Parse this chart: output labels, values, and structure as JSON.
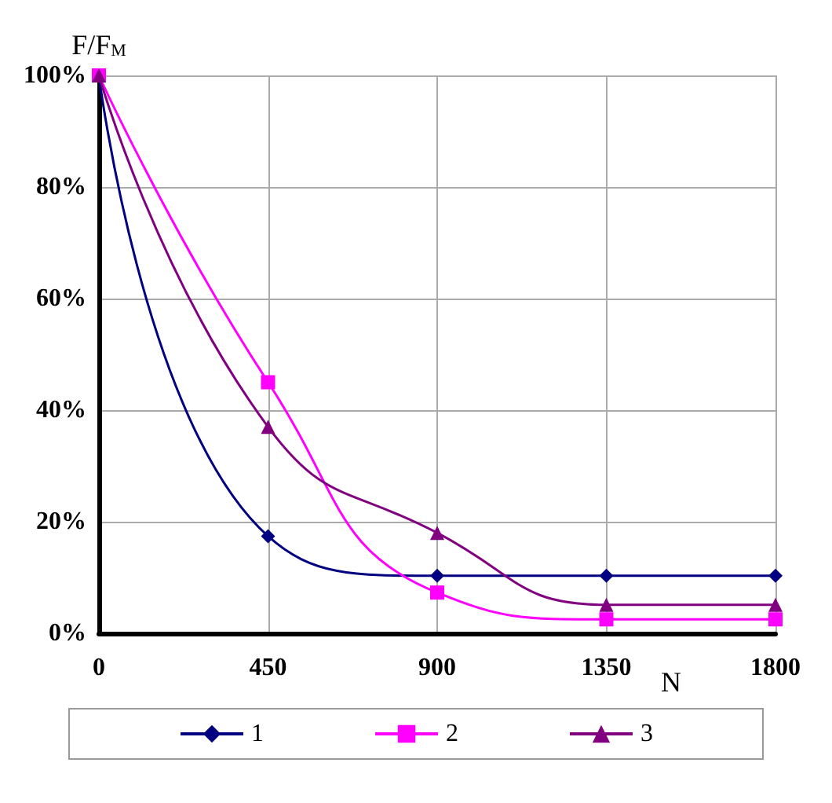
{
  "chart_data": {
    "type": "line",
    "ylabel": "F/F$_{M}$",
    "xlabel": "N",
    "x": [
      0,
      450,
      900,
      1350,
      1800
    ],
    "series": [
      {
        "name": "1",
        "color": "#000080",
        "marker": "diamond",
        "values": [
          100,
          17.4,
          10.3,
          10.3,
          10.3
        ]
      },
      {
        "name": "2",
        "color": "#ff00ff",
        "marker": "square",
        "values": [
          100,
          45,
          7.3,
          2.5,
          2.5
        ]
      },
      {
        "name": "3",
        "color": "#800080",
        "marker": "triangle",
        "values": [
          100,
          37,
          18,
          5.1,
          5.1
        ]
      }
    ],
    "xlim": [
      0,
      1800
    ],
    "xticks": [
      0,
      450,
      900,
      1350,
      1800
    ],
    "ylim": [
      0,
      100
    ],
    "yticks": [
      {
        "value": 0,
        "label": "0%"
      },
      {
        "value": 20,
        "label": "20%"
      },
      {
        "value": 40,
        "label": "40%"
      },
      {
        "value": 60,
        "label": "60%"
      },
      {
        "value": 80,
        "label": "80%"
      },
      {
        "value": 100,
        "label": "100%"
      }
    ],
    "grid": true,
    "legend": "bottom"
  }
}
